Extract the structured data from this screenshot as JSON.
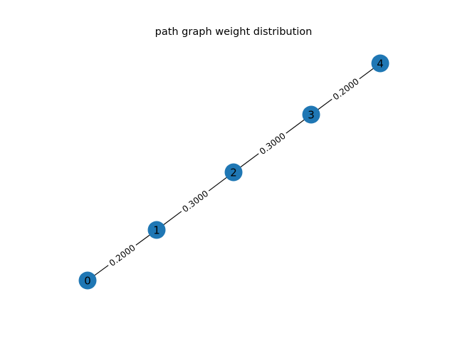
{
  "title": "path graph weight distribution",
  "colors": {
    "node_fill": "#1f77b4",
    "edge": "#000000",
    "text": "#000000",
    "background": "#ffffff"
  },
  "nodes": [
    {
      "id": "0",
      "label": "0"
    },
    {
      "id": "1",
      "label": "1"
    },
    {
      "id": "2",
      "label": "2"
    },
    {
      "id": "3",
      "label": "3"
    },
    {
      "id": "4",
      "label": "4"
    }
  ],
  "edges": [
    {
      "source": "0",
      "target": "1",
      "weight": 0.2,
      "label": "0.2000"
    },
    {
      "source": "1",
      "target": "2",
      "weight": 0.3,
      "label": "0.3000"
    },
    {
      "source": "2",
      "target": "3",
      "weight": 0.3,
      "label": "0.3000"
    },
    {
      "source": "3",
      "target": "4",
      "weight": 0.2,
      "label": "0.2000"
    }
  ]
}
